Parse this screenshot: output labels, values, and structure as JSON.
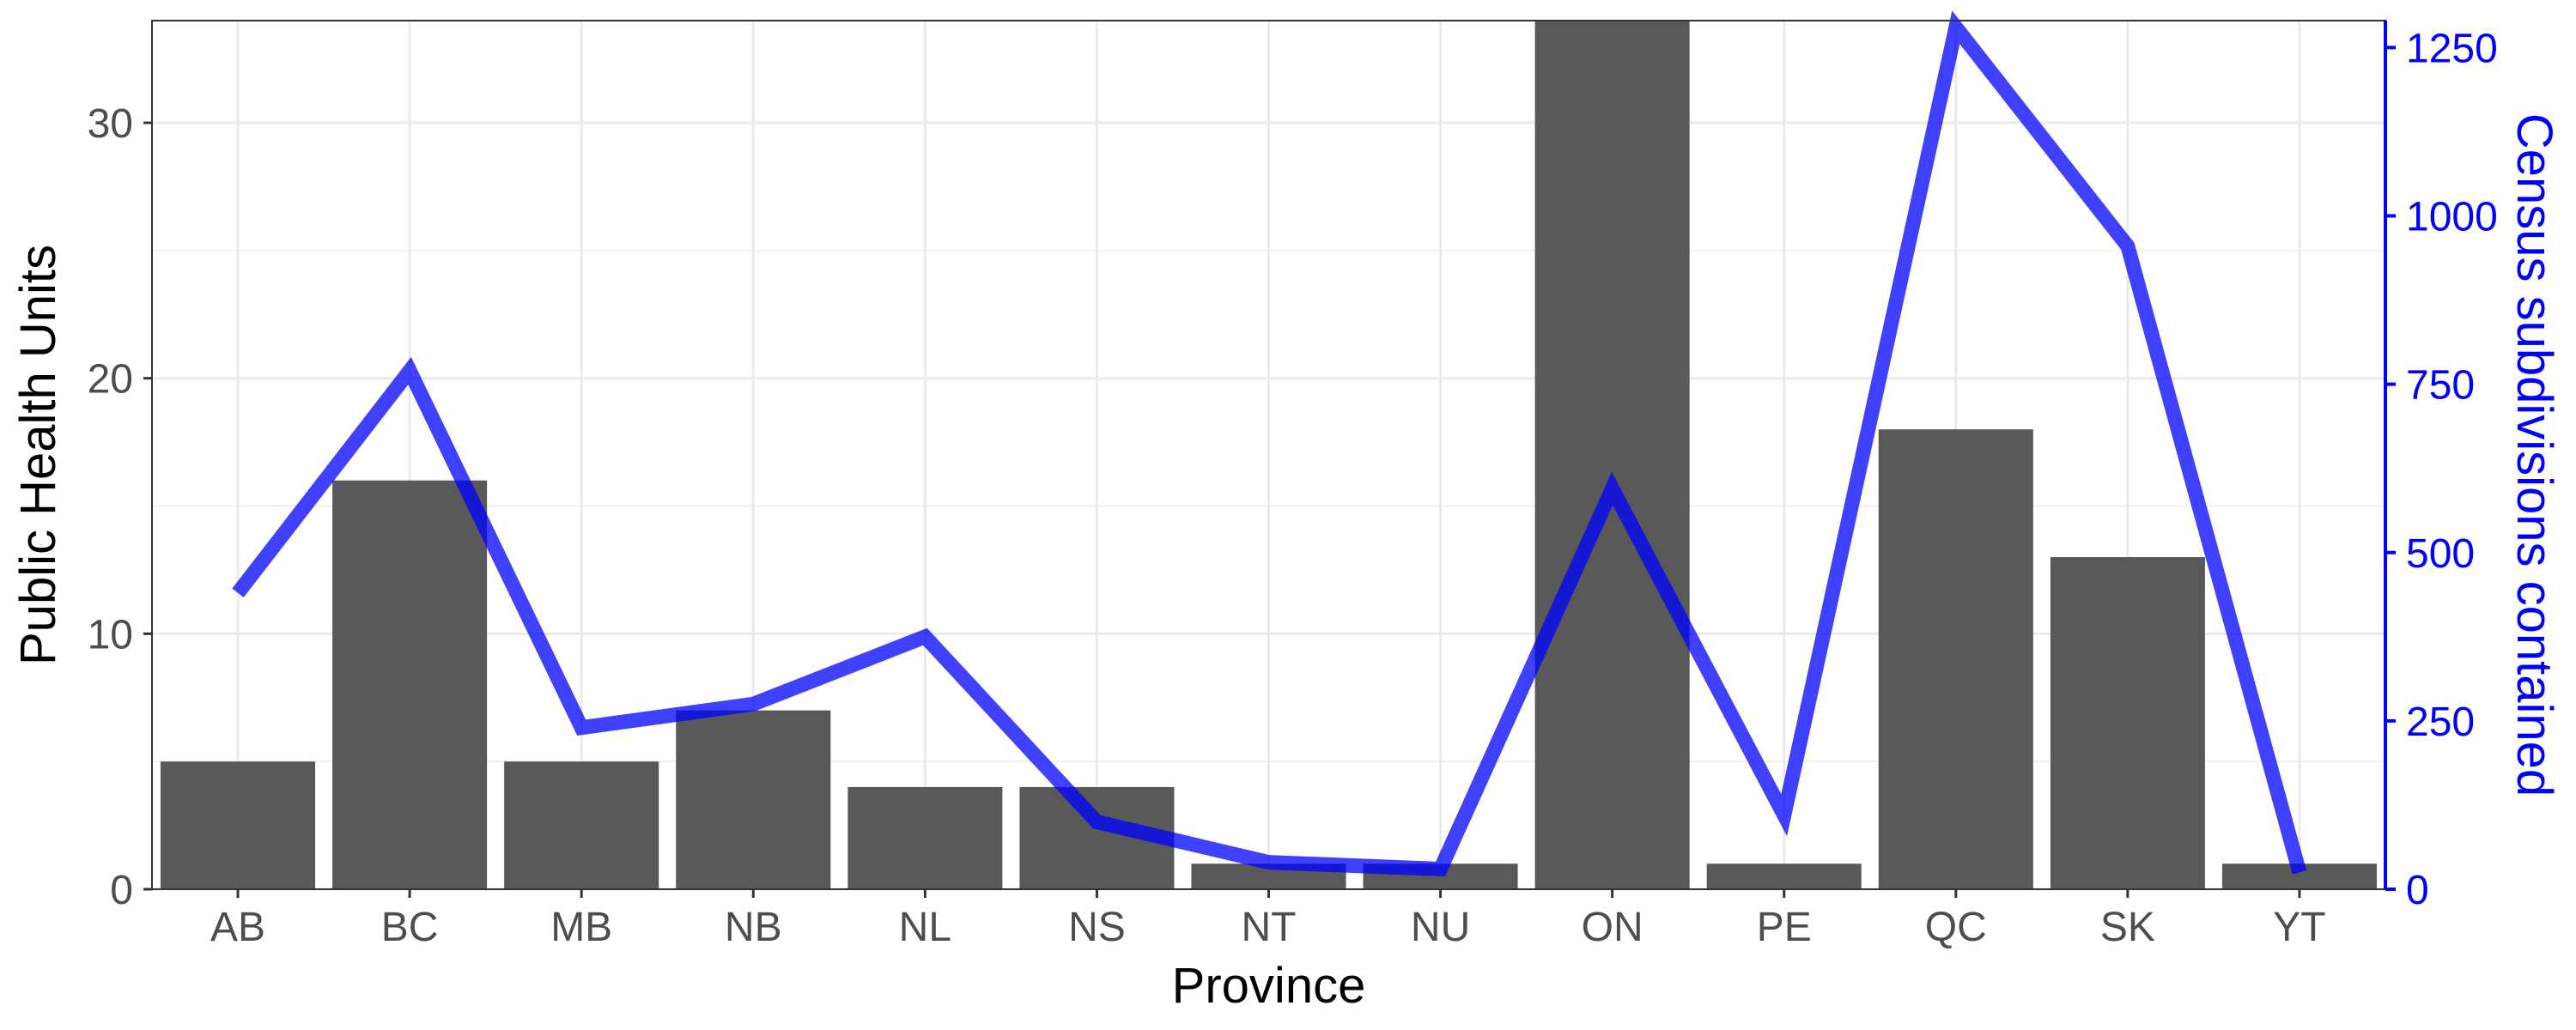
{
  "chart_data": {
    "type": "bar",
    "categories": [
      "AB",
      "BC",
      "MB",
      "NB",
      "NL",
      "NS",
      "NT",
      "NU",
      "ON",
      "PE",
      "QC",
      "SK",
      "YT"
    ],
    "xlabel": "Province",
    "ylabel": "Public Health Units",
    "ylim": [
      0,
      34
    ],
    "yticks": [
      0,
      10,
      20,
      30
    ],
    "series": [
      {
        "type": "bar",
        "axis": "left",
        "values": [
          5,
          16,
          5,
          7,
          4,
          4,
          1,
          1,
          34,
          1,
          18,
          13,
          1
        ],
        "color": "#595959"
      },
      {
        "type": "line",
        "axis": "right",
        "values": [
          440,
          770,
          240,
          275,
          375,
          100,
          40,
          30,
          595,
          110,
          1280,
          955,
          25
        ],
        "color": "#0000FF"
      }
    ],
    "y2label": "Census subdivisions contained",
    "y2lim": [
      0,
      1290
    ],
    "y2ticks": [
      0,
      250,
      500,
      750,
      1000,
      1250
    ],
    "y2_color": "#0000FF",
    "grid": true,
    "legend": "none"
  }
}
